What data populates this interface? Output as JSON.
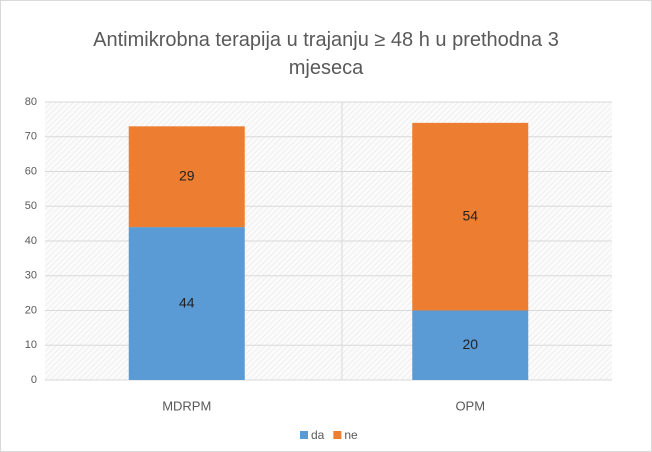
{
  "chart_data": {
    "type": "stacked_bar",
    "title": "Antimikrobna terapija u trajanju ≥ 48 h u prethodna 3 mjeseca",
    "categories": [
      "MDRPM",
      "OPM"
    ],
    "series": [
      {
        "name": "da",
        "color": "#5b9bd5",
        "values": [
          44,
          20
        ]
      },
      {
        "name": "ne",
        "color": "#ed7d31",
        "values": [
          29,
          54
        ]
      }
    ],
    "ylim": [
      0,
      80
    ],
    "yticks": [
      0,
      10,
      20,
      30,
      40,
      50,
      60,
      70,
      80
    ],
    "grid": true,
    "legend": "bottom"
  }
}
